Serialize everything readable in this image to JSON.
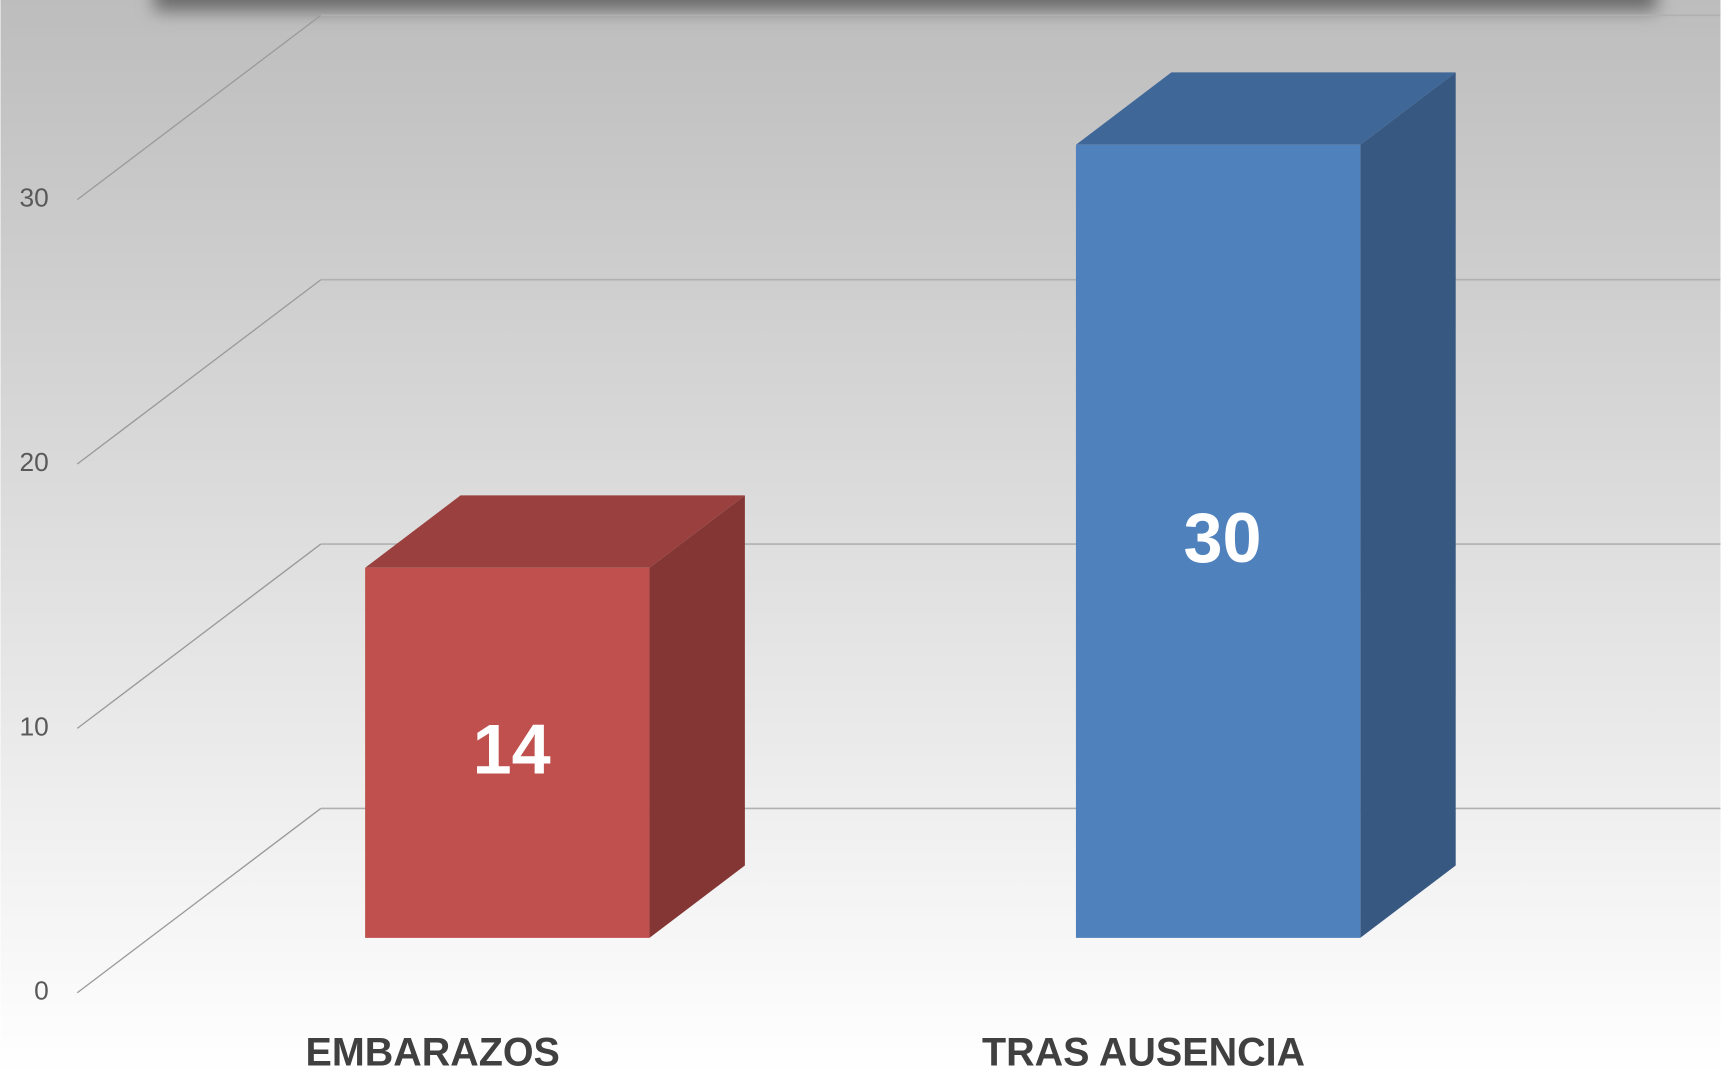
{
  "chart_data": {
    "type": "bar3d",
    "categories": [
      "EMBARAZOS",
      "TRAS AUSENCIA"
    ],
    "values": [
      14,
      30
    ],
    "colors": [
      "#c0504d",
      "#4f81bd"
    ],
    "ylim": [
      0,
      40
    ],
    "yticks": [
      0,
      10,
      20,
      30
    ],
    "grid": true
  }
}
